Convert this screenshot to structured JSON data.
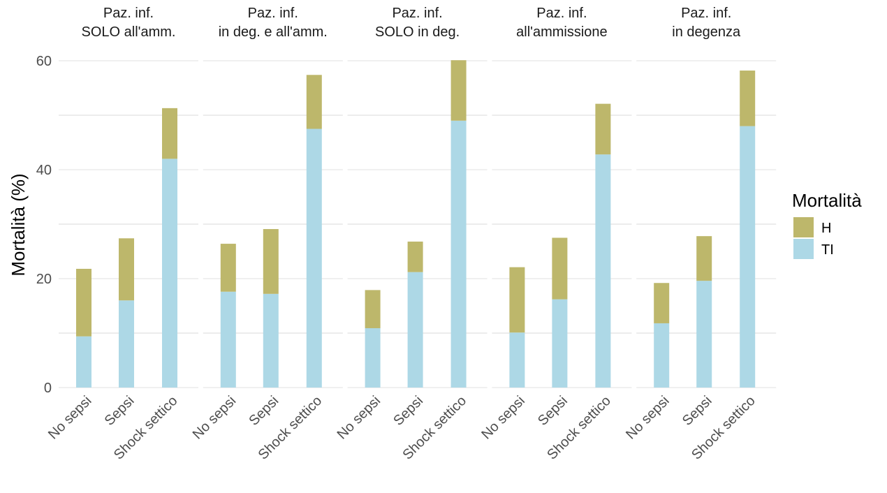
{
  "chart_data": {
    "type": "bar",
    "stacked": true,
    "ylabel": "Mortalità (%)",
    "xlabel": "",
    "ylim": [
      0,
      60
    ],
    "yticks": [
      0,
      20,
      40,
      60
    ],
    "grid": true,
    "categories": [
      "No sepsi",
      "Sepsi",
      "Shock settico"
    ],
    "legend": {
      "title": "Mortalità",
      "position": "right",
      "entries": [
        {
          "name": "H",
          "color": "#bdb76b"
        },
        {
          "name": "TI",
          "color": "#add8e6"
        }
      ]
    },
    "series_colors": {
      "TI": "#add8e6",
      "H": "#bdb76b"
    },
    "panels": [
      {
        "title_line1": "Paz. inf.",
        "title_line2": "SOLO all'amm.",
        "series": [
          {
            "name": "TI",
            "values": [
              9.4,
              16.0,
              42.0
            ]
          },
          {
            "name": "H",
            "values": [
              12.4,
              11.4,
              9.3
            ]
          }
        ]
      },
      {
        "title_line1": "Paz. inf.",
        "title_line2": "in deg. e all'amm.",
        "series": [
          {
            "name": "TI",
            "values": [
              17.6,
              17.2,
              47.5
            ]
          },
          {
            "name": "H",
            "values": [
              8.8,
              11.9,
              9.9
            ]
          }
        ]
      },
      {
        "title_line1": "Paz. inf.",
        "title_line2": "SOLO in deg.",
        "series": [
          {
            "name": "TI",
            "values": [
              10.9,
              21.2,
              49.0
            ]
          },
          {
            "name": "H",
            "values": [
              7.0,
              5.6,
              11.1
            ]
          }
        ]
      },
      {
        "title_line1": "Paz. inf.",
        "title_line2": "all'ammissione",
        "series": [
          {
            "name": "TI",
            "values": [
              10.1,
              16.2,
              42.8
            ]
          },
          {
            "name": "H",
            "values": [
              12.0,
              11.3,
              9.3
            ]
          }
        ]
      },
      {
        "title_line1": "Paz. inf.",
        "title_line2": "in degenza",
        "series": [
          {
            "name": "TI",
            "values": [
              11.8,
              19.6,
              48.0
            ]
          },
          {
            "name": "H",
            "values": [
              7.4,
              8.2,
              10.2
            ]
          }
        ]
      }
    ]
  }
}
